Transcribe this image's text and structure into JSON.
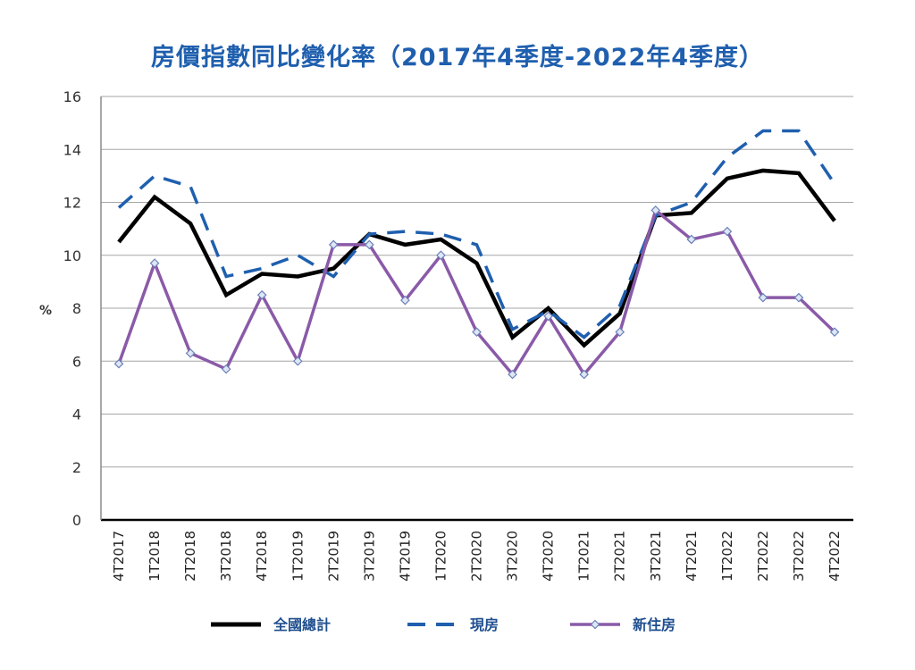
{
  "chart_data": {
    "type": "line",
    "title": "房價指數同比變化率（2017年4季度-2022年4季度）",
    "ylabel": "%",
    "ylim": [
      0,
      16
    ],
    "yticks": [
      0,
      2,
      4,
      6,
      8,
      10,
      12,
      14,
      16
    ],
    "grid": true,
    "legend_position": "bottom",
    "categories": [
      "4T2017",
      "1T2018",
      "2T2018",
      "3T2018",
      "4T2018",
      "1T2019",
      "2T2019",
      "3T2019",
      "4T2019",
      "1T2020",
      "2T2020",
      "3T2020",
      "4T2020",
      "1T2021",
      "2T2021",
      "3T2021",
      "4T2021",
      "1T2022",
      "2T2022",
      "3T2022",
      "4T2022"
    ],
    "series": [
      {
        "name": "全國總計",
        "color": "#000000",
        "style": "solid",
        "values": [
          10.5,
          12.2,
          11.2,
          8.5,
          9.3,
          9.2,
          9.5,
          10.8,
          10.4,
          10.6,
          9.7,
          6.9,
          8.0,
          6.6,
          7.8,
          11.5,
          11.6,
          12.9,
          13.2,
          13.1,
          11.3
        ]
      },
      {
        "name": "現房",
        "color": "#1f5fae",
        "style": "dashed",
        "values": [
          11.8,
          13.0,
          12.6,
          9.2,
          9.5,
          10.0,
          9.2,
          10.8,
          10.9,
          10.8,
          10.4,
          7.2,
          7.9,
          6.9,
          8.1,
          11.5,
          12.0,
          13.7,
          14.7,
          14.7,
          12.7
        ]
      },
      {
        "name": "新住房",
        "color": "#8a5aa8",
        "style": "solid-markers",
        "values": [
          5.9,
          9.7,
          6.3,
          5.7,
          8.5,
          6.0,
          10.4,
          10.4,
          8.3,
          10.0,
          7.1,
          5.5,
          7.7,
          5.5,
          7.1,
          11.7,
          10.6,
          10.9,
          8.4,
          8.4,
          7.1
        ]
      }
    ]
  }
}
